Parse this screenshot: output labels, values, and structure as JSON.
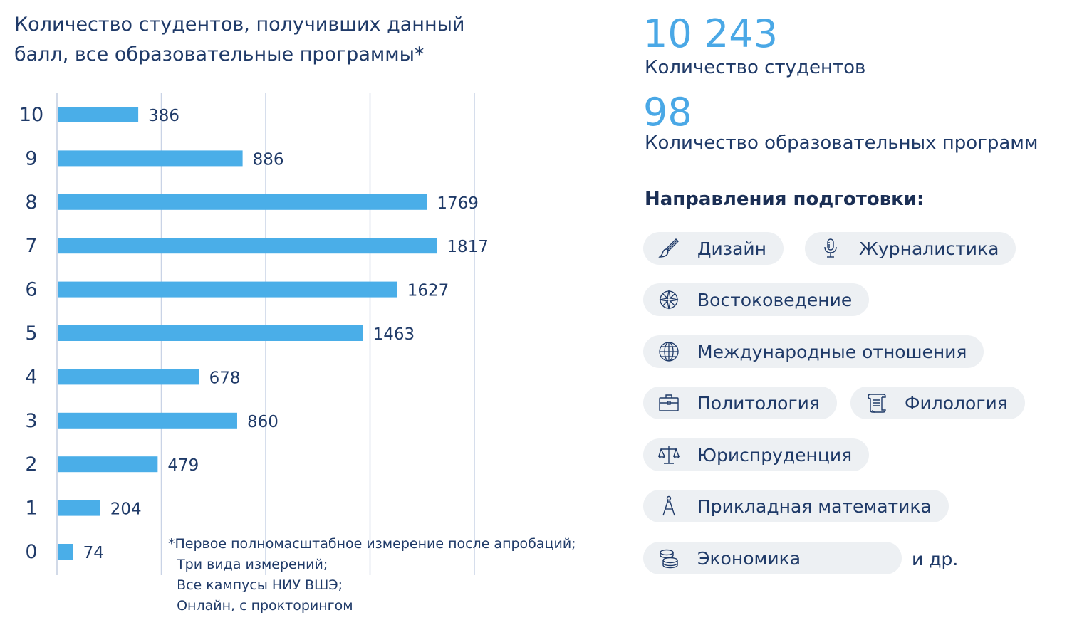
{
  "chart_data": {
    "type": "bar",
    "orientation": "horizontal",
    "title": "Количество студентов, получивших данный балл, все образовательные программы*",
    "categories": [
      "10",
      "9",
      "8",
      "7",
      "6",
      "5",
      "4",
      "3",
      "2",
      "1",
      "0"
    ],
    "values": [
      386,
      886,
      1769,
      1817,
      1627,
      1463,
      678,
      860,
      479,
      204,
      74
    ],
    "data_labels": [
      "386",
      "886",
      "1769",
      "1817",
      "1627",
      "1463",
      "678",
      "860",
      "479",
      "204",
      "74"
    ],
    "xlim": [
      0,
      2000
    ],
    "grid": true,
    "bar_color": "#4aaee8"
  },
  "footnote": "*Первое полномасштабное измерение после апробаций;\n  Три вида измерений;\n  Все кампусы НИУ ВШЭ;\n  Онлайн, с прокторингом",
  "stats": [
    {
      "value": "10 243",
      "label": "Количество студентов"
    },
    {
      "value": "98",
      "label": "Количество образовательных программ"
    }
  ],
  "section_title": "Направления подготовки:",
  "directions": [
    {
      "label": "Дизайн",
      "icon": "brush-icon"
    },
    {
      "label": "Журналистика",
      "icon": "microphone-icon"
    },
    {
      "label": "Востоковедение",
      "icon": "compass-rose-icon"
    },
    {
      "label": "Международные отношения",
      "icon": "globe-icon"
    },
    {
      "label": "Политология",
      "icon": "briefcase-icon"
    },
    {
      "label": "Филология",
      "icon": "scroll-icon"
    },
    {
      "label": "Юриспруденция",
      "icon": "scales-icon"
    },
    {
      "label": "Прикладная математика",
      "icon": "drafting-compass-icon"
    },
    {
      "label": "Экономика",
      "icon": "coins-icon"
    }
  ],
  "and_more": "и др.",
  "colors": {
    "accent": "#4aa8e6",
    "text": "#1f3a68",
    "chip_bg": "#edf0f3",
    "grid": "#c9d3e6"
  }
}
